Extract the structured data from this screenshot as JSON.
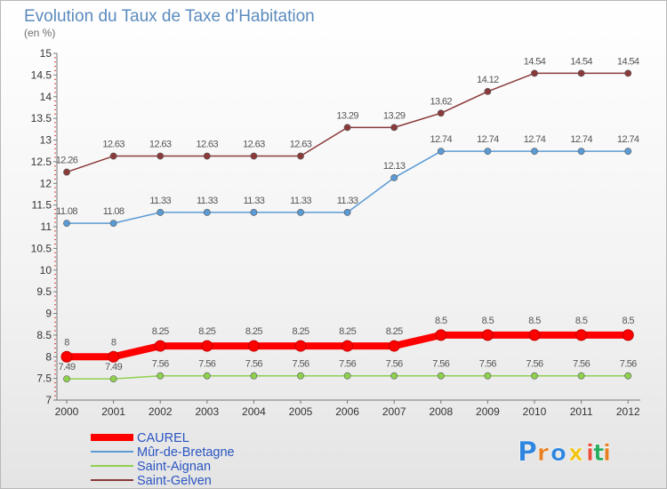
{
  "chart_data": {
    "type": "line",
    "title": "Evolution du Taux de Taxe d’Habitation",
    "subtitle": "(en %)",
    "xlabel": "",
    "ylabel": "",
    "x": [
      "2000",
      "2001",
      "2002",
      "2003",
      "2004",
      "2005",
      "2006",
      "2007",
      "2008",
      "2009",
      "2010",
      "2011",
      "2012"
    ],
    "ylim": [
      7,
      15
    ],
    "yticks": [
      "7",
      "7.5",
      "8",
      "8.5",
      "9",
      "9.5",
      "10",
      "10.5",
      "11",
      "11.5",
      "12",
      "12.5",
      "13",
      "13.5",
      "14",
      "14.5",
      "15"
    ],
    "grid": false,
    "legend_placement": "bottom-left",
    "series": [
      {
        "name": "CAUREL",
        "color": "#ff0000",
        "values": [
          8,
          8,
          8.25,
          8.25,
          8.25,
          8.25,
          8.25,
          8.25,
          8.5,
          8.5,
          8.5,
          8.5,
          8.5
        ],
        "labels": [
          "8",
          "8",
          "8.25",
          "8.25",
          "8.25",
          "8.25",
          "8.25",
          "8.25",
          "8.5",
          "8.5",
          "8.5",
          "8.5",
          "8.5"
        ]
      },
      {
        "name": "Mûr-de-Bretagne",
        "color": "#5b9bd5",
        "values": [
          11.08,
          11.08,
          11.33,
          11.33,
          11.33,
          11.33,
          11.33,
          12.13,
          12.74,
          12.74,
          12.74,
          12.74,
          12.74
        ],
        "labels": [
          "11.08",
          "11.08",
          "11.33",
          "11.33",
          "11.33",
          "11.33",
          "11.33",
          "12.13",
          "12.74",
          "12.74",
          "12.74",
          "12.74",
          "12.74"
        ]
      },
      {
        "name": "Saint-Aignan",
        "color": "#8fd14f",
        "values": [
          7.49,
          7.49,
          7.56,
          7.56,
          7.56,
          7.56,
          7.56,
          7.56,
          7.56,
          7.56,
          7.56,
          7.56,
          7.56
        ],
        "labels": [
          "7.49",
          "7.49",
          "7.56",
          "7.56",
          "7.56",
          "7.56",
          "7.56",
          "7.56",
          "7.56",
          "7.56",
          "7.56",
          "7.56",
          "7.56"
        ]
      },
      {
        "name": "Saint-Gelven",
        "color": "#8b3a3a",
        "values": [
          12.26,
          12.63,
          12.63,
          12.63,
          12.63,
          12.63,
          13.29,
          13.29,
          13.62,
          14.12,
          14.54,
          14.54,
          14.54
        ],
        "labels": [
          "12.26",
          "12.63",
          "12.63",
          "12.63",
          "12.63",
          "12.63",
          "13.29",
          "13.29",
          "13.62",
          "14.12",
          "14.54",
          "14.54",
          "14.54"
        ]
      }
    ]
  },
  "logo": {
    "text": "Proxiti",
    "letters": [
      "P",
      "r",
      "o",
      "x",
      "i",
      "t",
      "i"
    ],
    "colors": [
      "#2e86de",
      "#e67e22",
      "#2e86de",
      "#f1c40f",
      "#e74c3c",
      "#27ae60",
      "#e67e22"
    ]
  }
}
